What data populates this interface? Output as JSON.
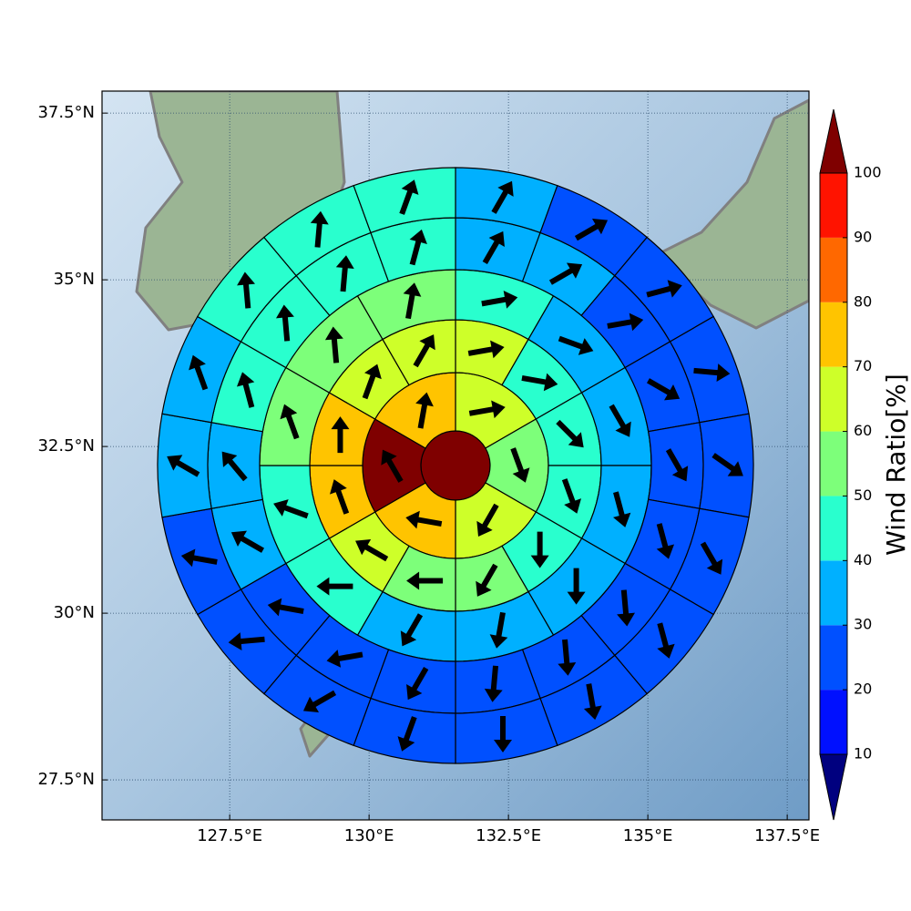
{
  "chart_data": {
    "type": "polar-grid",
    "xlim": [
      125.21,
      137.89
    ],
    "ylim": [
      26.9,
      37.83
    ],
    "xticks": [
      {
        "value": 127.5,
        "label": "127.5°E"
      },
      {
        "value": 130,
        "label": "130°E"
      },
      {
        "value": 132.5,
        "label": "132.5°E"
      },
      {
        "value": 135,
        "label": "135°E"
      },
      {
        "value": 137.5,
        "label": "137.5°E"
      }
    ],
    "yticks": [
      {
        "value": 27.5,
        "label": "27.5°N"
      },
      {
        "value": 30,
        "label": "30°N"
      },
      {
        "value": 32.5,
        "label": "32.5°N"
      },
      {
        "value": 35,
        "label": "35°N"
      },
      {
        "value": 37.5,
        "label": "37.5°N"
      }
    ],
    "grid": true,
    "rings": [
      {
        "values": [
          105
        ]
      },
      {
        "values": [
          65,
          55,
          65,
          75,
          105,
          75
        ],
        "directions": [
          80,
          160,
          210,
          280,
          330,
          10
        ]
      },
      {
        "values": [
          65,
          45,
          45,
          45,
          45,
          55,
          55,
          65,
          75,
          75,
          65,
          65
        ],
        "directions": [
          80,
          100,
          135,
          160,
          180,
          210,
          270,
          300,
          340,
          0,
          20,
          30
        ]
      },
      {
        "values": [
          45,
          35,
          35,
          35,
          35,
          35,
          35,
          45,
          45,
          55,
          55,
          55
        ],
        "directions": [
          80,
          110,
          150,
          165,
          180,
          190,
          210,
          270,
          290,
          340,
          355,
          10
        ]
      },
      {
        "values": [
          35,
          35,
          25,
          25,
          25,
          25,
          25,
          25,
          25,
          25,
          25,
          25,
          35,
          35,
          45,
          45,
          45,
          45
        ],
        "directions": [
          30,
          60,
          80,
          120,
          150,
          165,
          175,
          175,
          185,
          210,
          260,
          280,
          300,
          320,
          345,
          355,
          5,
          15
        ]
      },
      {
        "values": [
          35,
          25,
          25,
          25,
          25,
          25,
          25,
          25,
          25,
          25,
          25,
          25,
          25,
          35,
          35,
          45,
          45,
          45
        ],
        "directions": [
          30,
          60,
          75,
          95,
          125,
          150,
          165,
          170,
          180,
          200,
          240,
          265,
          280,
          300,
          340,
          355,
          5,
          20
        ]
      }
    ],
    "colorbar": {
      "label": "Wind Ratio[%]",
      "levels": [
        10,
        20,
        30,
        40,
        50,
        60,
        70,
        80,
        90,
        100
      ],
      "colors": [
        "#0010ff",
        "#0050ff",
        "#00b0ff",
        "#29ffce",
        "#7dff7a",
        "#ceff29",
        "#ffc400",
        "#ff6800",
        "#ff1300"
      ],
      "under": "#00007f",
      "over": "#7f0000"
    }
  }
}
